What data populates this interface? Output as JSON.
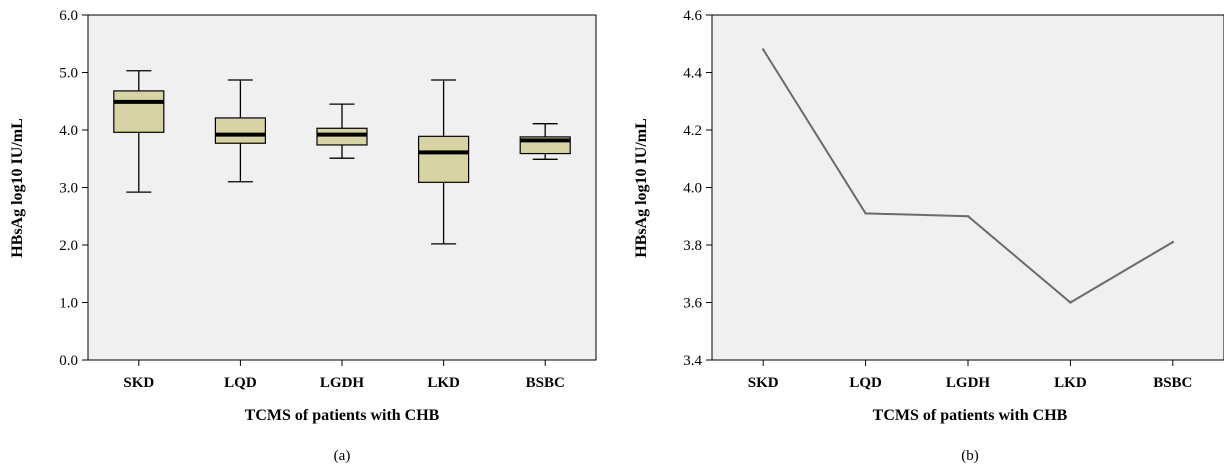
{
  "chart_data": [
    {
      "type": "box",
      "panel_label": "(a)",
      "title": "",
      "xlabel": "TCMS of patients with CHB",
      "ylabel": "HBsAg log10 IU/mL",
      "ylim": [
        0.0,
        6.0
      ],
      "yticks": [
        "0.0",
        "1.0",
        "2.0",
        "3.0",
        "4.0",
        "5.0",
        "6.0"
      ],
      "categories": [
        "SKD",
        "LQD",
        "LGDH",
        "LKD",
        "BSBC"
      ],
      "boxes": [
        {
          "min": 2.92,
          "q1": 3.96,
          "median": 4.49,
          "q3": 4.68,
          "max": 5.03
        },
        {
          "min": 3.1,
          "q1": 3.77,
          "median": 3.92,
          "q3": 4.21,
          "max": 4.87
        },
        {
          "min": 3.51,
          "q1": 3.74,
          "median": 3.92,
          "q3": 4.03,
          "max": 4.45
        },
        {
          "min": 2.02,
          "q1": 3.09,
          "median": 3.61,
          "q3": 3.89,
          "max": 4.87
        },
        {
          "min": 3.49,
          "q1": 3.59,
          "median": 3.82,
          "q3": 3.88,
          "max": 4.11
        }
      ],
      "colors": {
        "box_fill": "#d8d3a4",
        "plot_bg": "#f0f0f0",
        "median": "#000000"
      }
    },
    {
      "type": "line",
      "panel_label": "(b)",
      "title": "",
      "xlabel": "TCMS of patients with CHB",
      "ylabel": "HBsAg log10 IU/mL",
      "ylim": [
        3.4,
        4.6
      ],
      "yticks": [
        "3.4",
        "3.6",
        "3.8",
        "4.0",
        "4.2",
        "4.4",
        "4.6"
      ],
      "categories": [
        "SKD",
        "LQD",
        "LGDH",
        "LKD",
        "BSBC"
      ],
      "values": [
        4.48,
        3.91,
        3.9,
        3.6,
        3.81
      ],
      "colors": {
        "line": "#6b6b6b",
        "plot_bg": "#f0f0f0"
      }
    }
  ]
}
